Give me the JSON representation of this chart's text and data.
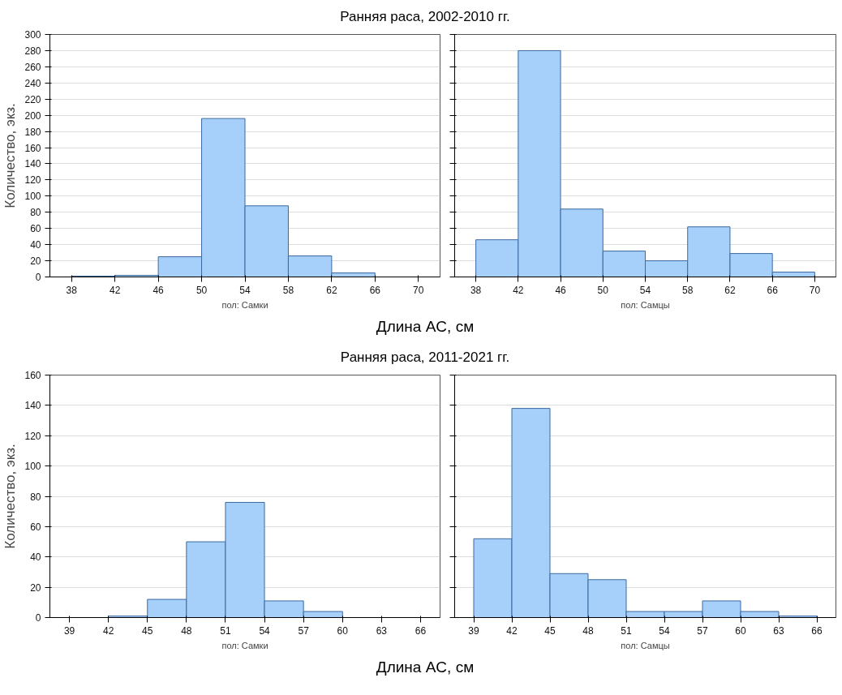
{
  "chart_data": [
    {
      "type": "histogram",
      "title": "Ранняя раса, 2002-2010 гг.",
      "ylabel": "Количество, экз.",
      "xlabel": "пол: Самки",
      "annotations": [
        "Длина AC, см"
      ],
      "bins": [
        38,
        42,
        46,
        50,
        54,
        58,
        62,
        66
      ],
      "values": [
        1,
        2,
        25,
        196,
        88,
        26,
        5
      ],
      "color": "#a6cffa",
      "xlim": [
        36,
        72
      ],
      "xticks": [
        38,
        42,
        46,
        50,
        54,
        58,
        62,
        66,
        70
      ],
      "ylim": [
        0,
        300
      ],
      "yticks": [
        0,
        20,
        40,
        60,
        80,
        100,
        120,
        140,
        160,
        180,
        200,
        220,
        240,
        260,
        280,
        300
      ],
      "grid": "y"
    },
    {
      "type": "histogram",
      "xlabel": "пол: Самцы",
      "bins": [
        38,
        42,
        46,
        50,
        54,
        58,
        62,
        66,
        70
      ],
      "values": [
        46,
        280,
        84,
        32,
        20,
        62,
        29,
        6
      ],
      "color": "#a6cffa",
      "xlim": [
        36,
        72
      ],
      "xticks": [
        38,
        42,
        46,
        50,
        54,
        58,
        62,
        66,
        70
      ],
      "ylim": [
        0,
        300
      ],
      "yticks": [
        0,
        20,
        40,
        60,
        80,
        100,
        120,
        140,
        160,
        180,
        200,
        220,
        240,
        260,
        280,
        300
      ],
      "grid": "y",
      "tick_labels": "x"
    },
    {
      "type": "histogram",
      "title": "Ранняя раса, 2011-2021 гг.",
      "ylabel": "Количество, экз.",
      "xlabel": "пол: Самки",
      "annotations": [
        "Длина AC, см"
      ],
      "bins": [
        42,
        45,
        48,
        51,
        54,
        57,
        60
      ],
      "values": [
        1,
        12,
        50,
        76,
        11,
        4
      ],
      "color": "#a6cffa",
      "xlim": [
        37.5,
        67.5
      ],
      "xticks": [
        39,
        42,
        45,
        48,
        51,
        54,
        57,
        60,
        63,
        66
      ],
      "ylim": [
        0,
        160
      ],
      "yticks": [
        0,
        20,
        40,
        60,
        80,
        100,
        120,
        140,
        160
      ],
      "grid": "y"
    },
    {
      "type": "histogram",
      "xlabel": "пол: Самцы",
      "bins": [
        39,
        42,
        45,
        48,
        51,
        54,
        57,
        60,
        63,
        66
      ],
      "values": [
        52,
        138,
        29,
        25,
        4,
        4,
        11,
        4,
        1
      ],
      "color": "#a6cffa",
      "xlim": [
        37.5,
        67.5
      ],
      "xticks": [
        39,
        42,
        45,
        48,
        51,
        54,
        57,
        60,
        63,
        66
      ],
      "ylim": [
        0,
        160
      ],
      "yticks": [
        0,
        20,
        40,
        60,
        80,
        100,
        120,
        140,
        160
      ],
      "grid": "y",
      "tick_labels": "x"
    }
  ]
}
